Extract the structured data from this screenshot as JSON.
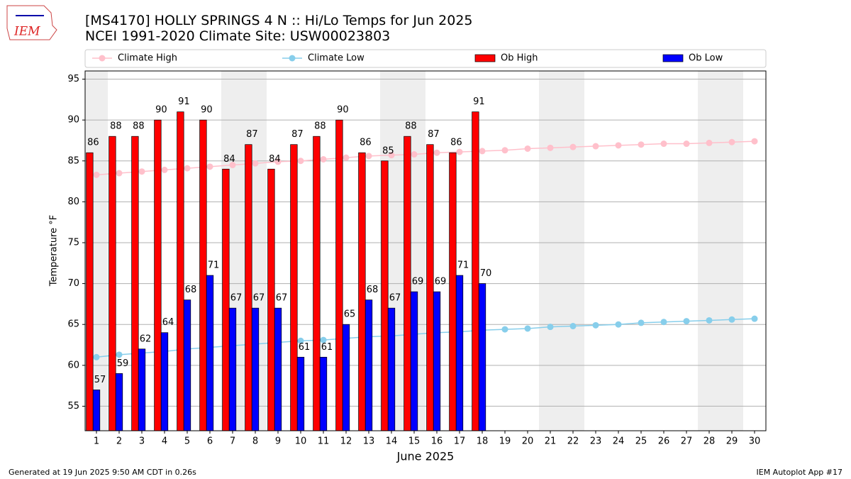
{
  "logo_text": "IEM",
  "footer": {
    "left": "Generated at 19 Jun 2025 9:50 AM CDT in 0.26s",
    "right": "IEM Autoplot App #17"
  },
  "chart_data": {
    "type": "bar",
    "title": "[MS4170] HOLLY SPRINGS 4 N :: Hi/Lo Temps for Jun 2025",
    "subtitle": "NCEI 1991-2020 Climate Site: USW00023803",
    "x_label": "June 2025",
    "y_label": "Temperature °F",
    "categories": [
      "1",
      "2",
      "3",
      "4",
      "5",
      "6",
      "7",
      "8",
      "9",
      "10",
      "11",
      "12",
      "13",
      "14",
      "15",
      "16",
      "17",
      "18",
      "19",
      "20",
      "21",
      "22",
      "23",
      "24",
      "25",
      "26",
      "27",
      "28",
      "29",
      "30"
    ],
    "weekend_days": [
      1,
      7,
      8,
      14,
      15,
      21,
      22,
      28,
      29
    ],
    "weekend_color": "#eeeeee",
    "series": [
      {
        "name": "Climate High",
        "kind": "line",
        "color": "#ffc0cb",
        "values": [
          83.3,
          83.5,
          83.7,
          83.9,
          84.1,
          84.3,
          84.5,
          84.7,
          84.9,
          85.0,
          85.2,
          85.4,
          85.6,
          85.7,
          85.8,
          86.0,
          86.1,
          86.2,
          86.3,
          86.5,
          86.6,
          86.7,
          86.8,
          86.9,
          87.0,
          87.1,
          87.1,
          87.2,
          87.3,
          87.4
        ]
      },
      {
        "name": "Climate Low",
        "kind": "line",
        "color": "#87ceeb",
        "values": [
          61.0,
          61.3,
          61.5,
          61.7,
          62.0,
          62.2,
          62.4,
          62.6,
          62.8,
          63.0,
          63.1,
          63.3,
          63.5,
          63.6,
          63.8,
          64.0,
          64.1,
          64.3,
          64.4,
          64.5,
          64.7,
          64.8,
          64.9,
          65.0,
          65.2,
          65.3,
          65.4,
          65.5,
          65.6,
          65.7
        ]
      },
      {
        "name": "Ob High",
        "kind": "bar",
        "color": "#ff0000",
        "values": [
          86,
          88,
          88,
          90,
          91,
          90,
          84,
          87,
          84,
          87,
          88,
          90,
          86,
          85,
          88,
          87,
          86,
          91,
          null,
          null,
          null,
          null,
          null,
          null,
          null,
          null,
          null,
          null,
          null,
          null
        ]
      },
      {
        "name": "Ob Low",
        "kind": "bar",
        "color": "#0000ff",
        "values": [
          57,
          59,
          62,
          64,
          68,
          71,
          67,
          67,
          67,
          61,
          61,
          65,
          68,
          67,
          69,
          69,
          71,
          70,
          null,
          null,
          null,
          null,
          null,
          null,
          null,
          null,
          null,
          null,
          null,
          null
        ]
      }
    ],
    "ylim": [
      52,
      96
    ],
    "yticks": [
      55,
      60,
      65,
      70,
      75,
      80,
      85,
      90,
      95
    ],
    "grid": true,
    "legend": "top"
  }
}
